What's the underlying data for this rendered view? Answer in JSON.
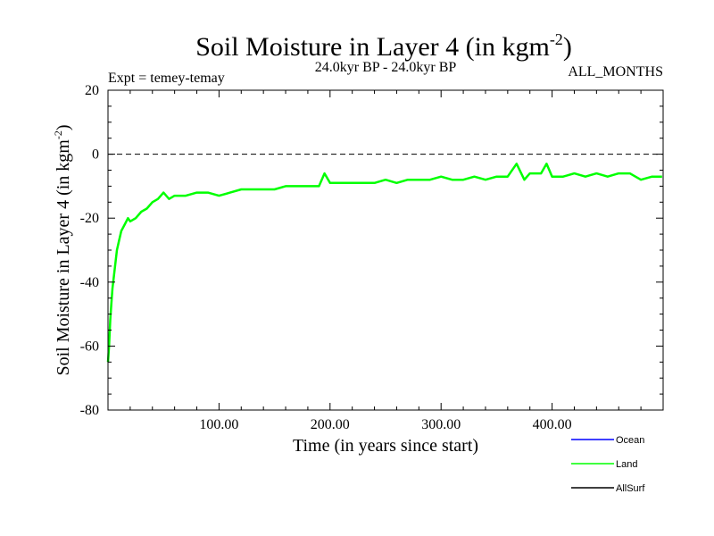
{
  "chart_data": {
    "type": "line",
    "title": "Soil Moisture in Layer 4 (in kgm",
    "title_superscript": "-2",
    "title_suffix": ")",
    "subtitle_left": "Expt = temey-temay",
    "subtitle_center": "24.0kyr BP - 24.0kyr BP",
    "subtitle_right": "ALL_MONTHS",
    "xlabel": "Time (in years since start)",
    "ylabel": "Soil Moisture in Layer 4 (in kgm",
    "ylabel_superscript": "-2",
    "ylabel_suffix": ")",
    "xlim": [
      0,
      500
    ],
    "ylim": [
      -80,
      20
    ],
    "xticks": [
      100,
      200,
      300,
      400
    ],
    "xtick_labels": [
      "100.00",
      "200.00",
      "300.00",
      "400.00"
    ],
    "yticks": [
      -80,
      -60,
      -40,
      -20,
      0,
      20
    ],
    "ytick_labels": [
      "-80",
      "-60",
      "-40",
      "-20",
      "0",
      "20"
    ],
    "reference_line": 0,
    "legend": [
      {
        "name": "Ocean",
        "color": "#0000ff"
      },
      {
        "name": "Land",
        "color": "#00ff00"
      },
      {
        "name": "AllSurf",
        "color": "#000000"
      }
    ],
    "series": [
      {
        "name": "Land",
        "color": "#00ff00",
        "x": [
          0,
          1,
          2,
          3,
          4,
          6,
          8,
          10,
          12,
          15,
          18,
          20,
          25,
          30,
          35,
          40,
          45,
          50,
          55,
          60,
          70,
          80,
          90,
          100,
          110,
          120,
          130,
          140,
          150,
          160,
          170,
          180,
          190,
          195,
          200,
          210,
          220,
          230,
          240,
          250,
          260,
          270,
          280,
          290,
          300,
          310,
          320,
          330,
          340,
          350,
          360,
          368,
          375,
          380,
          390,
          395,
          400,
          410,
          420,
          430,
          440,
          450,
          460,
          470,
          480,
          490,
          499
        ],
        "values": [
          -65,
          -60,
          -52,
          -47,
          -42,
          -36,
          -30,
          -27,
          -24,
          -22,
          -20,
          -21,
          -20,
          -18,
          -17,
          -15,
          -14,
          -12,
          -14,
          -13,
          -13,
          -12,
          -12,
          -13,
          -12,
          -11,
          -11,
          -11,
          -11,
          -10,
          -10,
          -10,
          -10,
          -6,
          -9,
          -9,
          -9,
          -9,
          -9,
          -8,
          -9,
          -8,
          -8,
          -8,
          -7,
          -8,
          -8,
          -7,
          -8,
          -7,
          -7,
          -3,
          -8,
          -6,
          -6,
          -3,
          -7,
          -7,
          -6,
          -7,
          -6,
          -7,
          -6,
          -6,
          -8,
          -7,
          -7
        ]
      }
    ]
  }
}
